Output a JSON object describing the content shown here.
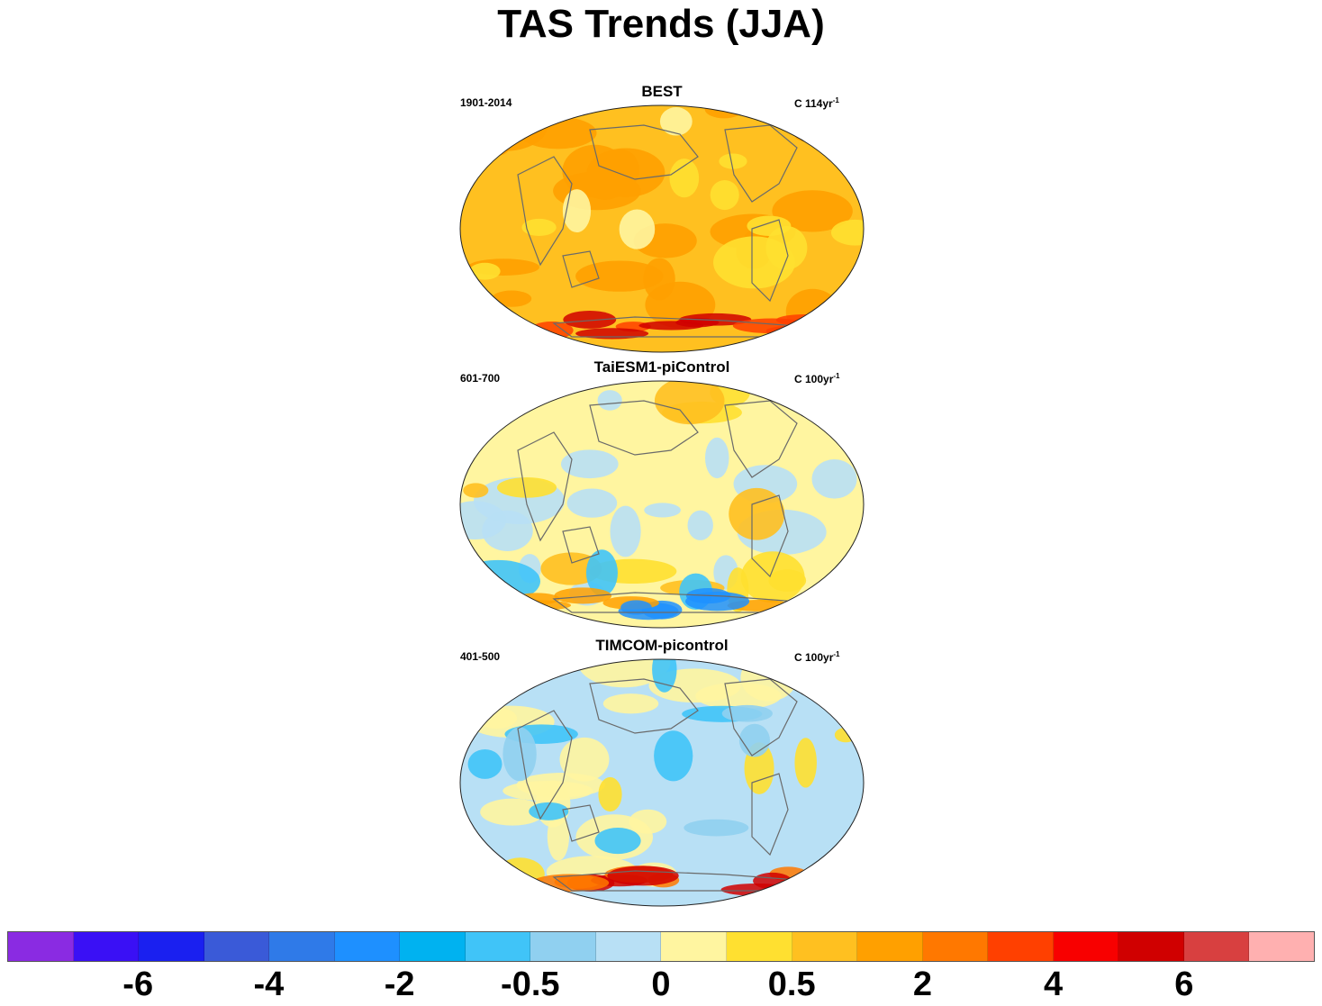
{
  "title": "TAS Trends (JJA)",
  "panels": [
    {
      "name": "BEST",
      "period": "1901-2014",
      "units_prefix": "C 114yr",
      "units_sup": "-1",
      "regime": "warm"
    },
    {
      "name": "TaiESM1-piControl",
      "period": "601-700",
      "units_prefix": "C 100yr",
      "units_sup": "-1",
      "regime": "mixed"
    },
    {
      "name": "TIMCOM-picontrol",
      "period": "401-500",
      "units_prefix": "C 100yr",
      "units_sup": "-1",
      "regime": "cool"
    }
  ],
  "colorbar": {
    "colors": [
      "#8a2be2",
      "#3a10f5",
      "#1a20f0",
      "#3a5ad8",
      "#2f7ae8",
      "#1e90ff",
      "#00b2f0",
      "#40c4f8",
      "#90d0f0",
      "#b8e0f5",
      "#fff5a0",
      "#ffe030",
      "#ffc020",
      "#ffa000",
      "#ff7800",
      "#ff4000",
      "#f80000",
      "#d00000",
      "#d84040",
      "#ffb0b0"
    ],
    "labels": [
      {
        "text": "-6",
        "index": 2
      },
      {
        "text": "-4",
        "index": 4
      },
      {
        "text": "-2",
        "index": 6
      },
      {
        "text": "-0.5",
        "index": 8
      },
      {
        "text": "0",
        "index": 10
      },
      {
        "text": "0.5",
        "index": 12
      },
      {
        "text": "2",
        "index": 14
      },
      {
        "text": "4",
        "index": 16
      },
      {
        "text": "6",
        "index": 18
      }
    ]
  }
}
